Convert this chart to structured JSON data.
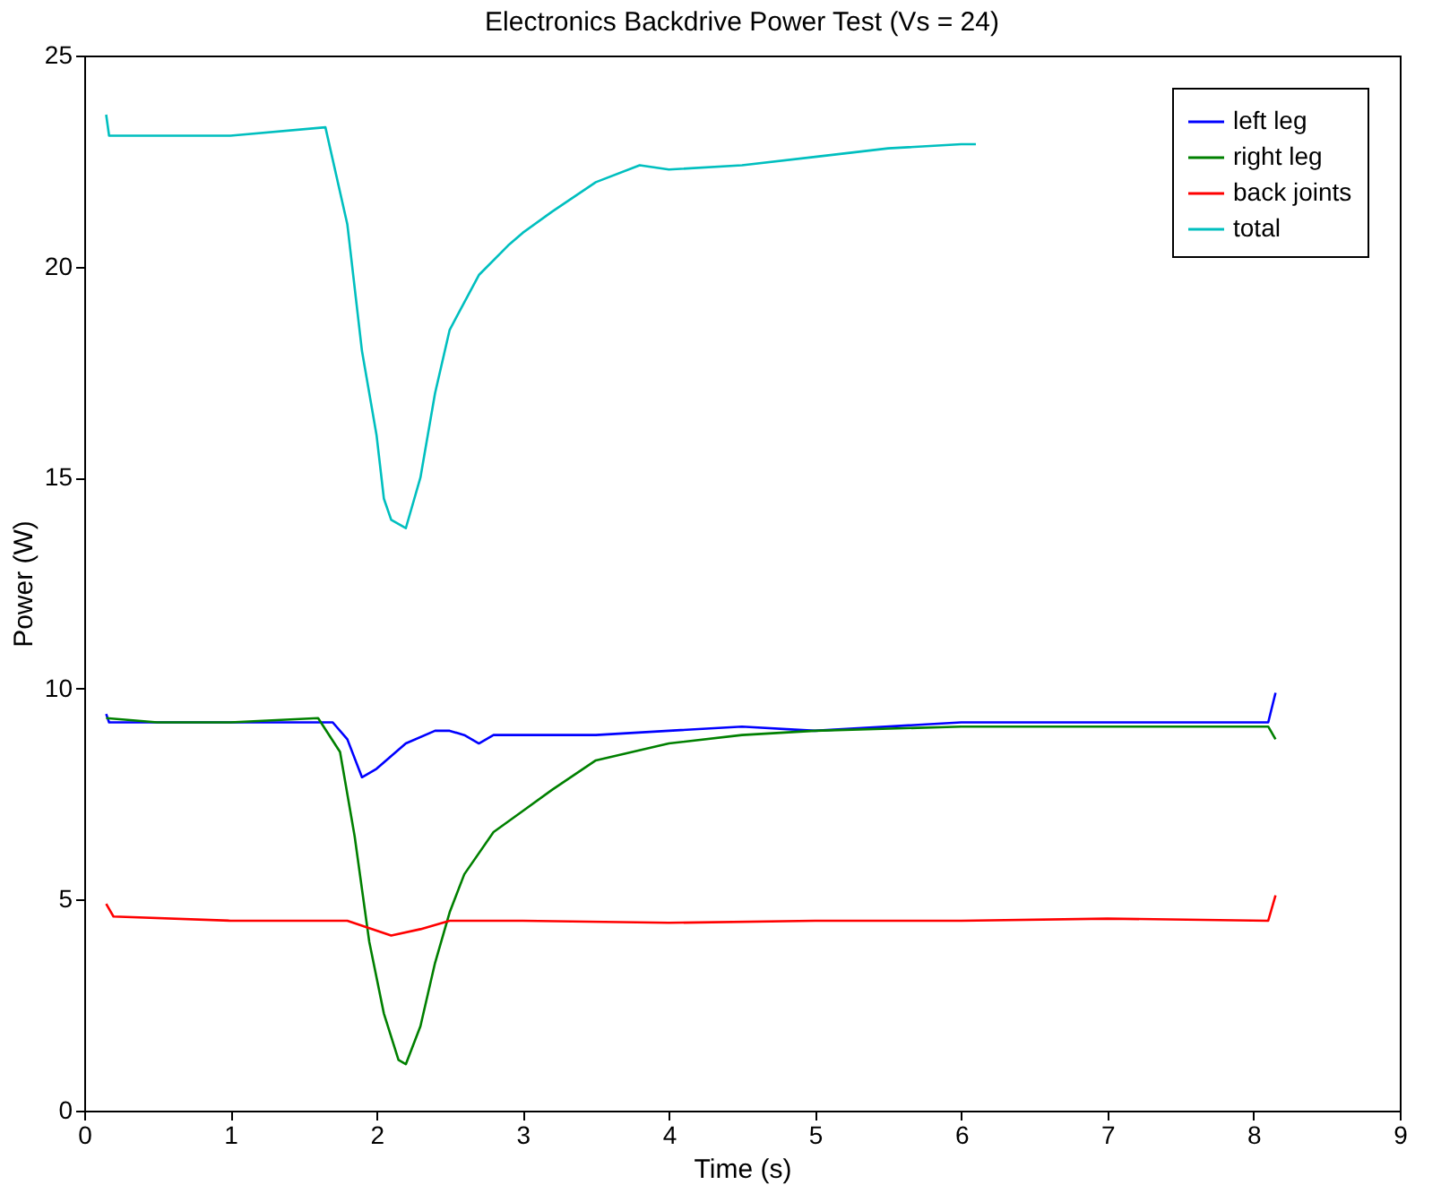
{
  "chart_data": {
    "type": "line",
    "title": "Electronics Backdrive Power Test (Vs = 24)",
    "xlabel": "Time (s)",
    "ylabel": "Power (W)",
    "xlim": [
      0,
      9
    ],
    "xticks": [
      0,
      1,
      2,
      3,
      4,
      5,
      6,
      7,
      8,
      9
    ],
    "ylim": [
      0,
      25
    ],
    "yticks": [
      0,
      5,
      10,
      15,
      20,
      25
    ],
    "grid": false,
    "legend": "top right",
    "marker": "none",
    "line_style": "solid",
    "series": [
      {
        "name": "left leg",
        "color": "#0000ff",
        "x": [
          0.15,
          0.17,
          0.5,
          1.0,
          1.5,
          1.7,
          1.8,
          1.9,
          2.0,
          2.2,
          2.4,
          2.5,
          2.6,
          2.7,
          2.8,
          3.0,
          3.5,
          4.0,
          4.5,
          5.0,
          6.0,
          7.0,
          8.1,
          8.15
        ],
        "values": [
          9.4,
          9.2,
          9.2,
          9.2,
          9.2,
          9.2,
          8.8,
          7.9,
          8.1,
          8.7,
          9.0,
          9.0,
          8.9,
          8.7,
          8.9,
          8.9,
          8.9,
          9.0,
          9.1,
          9.0,
          9.2,
          9.2,
          9.2,
          9.9
        ]
      },
      {
        "name": "right leg",
        "color": "#008000",
        "x": [
          0.15,
          0.5,
          1.0,
          1.6,
          1.75,
          1.85,
          1.95,
          2.05,
          2.15,
          2.2,
          2.3,
          2.4,
          2.5,
          2.6,
          2.8,
          3.0,
          3.2,
          3.5,
          4.0,
          4.5,
          5.0,
          6.0,
          7.0,
          8.1,
          8.15
        ],
        "values": [
          9.3,
          9.2,
          9.2,
          9.3,
          8.5,
          6.5,
          4.0,
          2.3,
          1.2,
          1.1,
          2.0,
          3.5,
          4.7,
          5.6,
          6.6,
          7.1,
          7.6,
          8.3,
          8.7,
          8.9,
          9.0,
          9.1,
          9.1,
          9.1,
          8.8
        ]
      },
      {
        "name": "back joints",
        "color": "#ff0000",
        "x": [
          0.15,
          0.2,
          1.0,
          1.8,
          2.1,
          2.3,
          2.5,
          3.0,
          4.0,
          5.0,
          6.0,
          7.0,
          8.1,
          8.15
        ],
        "values": [
          4.9,
          4.6,
          4.5,
          4.5,
          4.15,
          4.3,
          4.5,
          4.5,
          4.45,
          4.5,
          4.5,
          4.55,
          4.5,
          5.1
        ]
      },
      {
        "name": "total",
        "color": "#00bfbf",
        "x": [
          0.15,
          0.17,
          0.5,
          1.0,
          1.65,
          1.8,
          1.9,
          2.0,
          2.05,
          2.1,
          2.2,
          2.3,
          2.4,
          2.5,
          2.7,
          2.9,
          3.0,
          3.2,
          3.5,
          3.8,
          4.0,
          4.5,
          5.0,
          5.5,
          6.0,
          6.1
        ],
        "values": [
          23.6,
          23.1,
          23.1,
          23.1,
          23.3,
          21.0,
          18.0,
          16.0,
          14.5,
          14.0,
          13.8,
          15.0,
          17.0,
          18.5,
          19.8,
          20.5,
          20.8,
          21.3,
          22.0,
          22.4,
          22.3,
          22.4,
          22.6,
          22.8,
          22.9,
          22.9
        ]
      }
    ]
  }
}
